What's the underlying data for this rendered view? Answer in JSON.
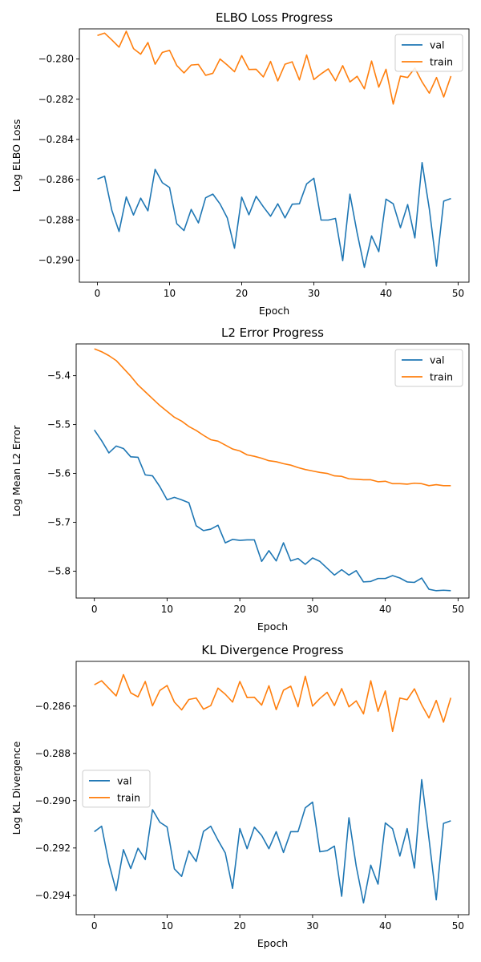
{
  "chart_data": [
    {
      "type": "line",
      "title": "ELBO Loss Progress",
      "xlabel": "Epoch",
      "ylabel": "Log ELBO Loss",
      "xlim": [
        -2.5,
        51.5
      ],
      "ylim": [
        -0.2911,
        -0.2785
      ],
      "xticks": [
        0,
        10,
        20,
        30,
        40,
        50
      ],
      "yticks": [
        -0.29,
        -0.288,
        -0.286,
        -0.284,
        -0.282,
        -0.28
      ],
      "ytick_labels": [
        "−0.290",
        "−0.288",
        "−0.286",
        "−0.284",
        "−0.282",
        "−0.280"
      ],
      "legend_position": "top-right",
      "x": [
        0,
        1,
        2,
        3,
        4,
        5,
        6,
        7,
        8,
        9,
        10,
        11,
        12,
        13,
        14,
        15,
        16,
        17,
        18,
        19,
        20,
        21,
        22,
        23,
        24,
        25,
        26,
        27,
        28,
        29,
        30,
        31,
        32,
        33,
        34,
        35,
        36,
        37,
        38,
        39,
        40,
        41,
        42,
        43,
        44,
        45,
        46,
        47,
        48,
        49
      ],
      "series": [
        {
          "name": "val",
          "color": "#1f77b4",
          "values": [
            -0.28597,
            -0.28583,
            -0.28752,
            -0.28858,
            -0.28686,
            -0.28776,
            -0.28692,
            -0.28755,
            -0.28549,
            -0.28615,
            -0.28639,
            -0.28819,
            -0.28853,
            -0.28748,
            -0.28815,
            -0.2869,
            -0.28672,
            -0.28721,
            -0.2879,
            -0.28941,
            -0.28687,
            -0.28775,
            -0.28683,
            -0.28735,
            -0.28782,
            -0.2872,
            -0.2879,
            -0.28722,
            -0.2872,
            -0.28621,
            -0.28593,
            -0.28801,
            -0.28801,
            -0.28793,
            -0.29003,
            -0.28672,
            -0.28865,
            -0.29036,
            -0.2888,
            -0.28958,
            -0.28697,
            -0.2872,
            -0.28839,
            -0.28724,
            -0.2889,
            -0.28515,
            -0.28745,
            -0.2903,
            -0.28707,
            -0.28694
          ]
        },
        {
          "name": "train",
          "color": "#ff7f0e",
          "values": [
            -0.27883,
            -0.27871,
            -0.27905,
            -0.27941,
            -0.27862,
            -0.27948,
            -0.27976,
            -0.27918,
            -0.28026,
            -0.27967,
            -0.27957,
            -0.28032,
            -0.28069,
            -0.2803,
            -0.28027,
            -0.28081,
            -0.28071,
            -0.28,
            -0.2803,
            -0.28063,
            -0.27983,
            -0.28052,
            -0.28051,
            -0.28089,
            -0.28012,
            -0.28109,
            -0.28026,
            -0.28014,
            -0.28104,
            -0.2798,
            -0.28102,
            -0.28074,
            -0.28049,
            -0.28108,
            -0.28033,
            -0.28114,
            -0.28086,
            -0.28148,
            -0.2801,
            -0.2814,
            -0.28051,
            -0.28224,
            -0.28085,
            -0.28092,
            -0.28045,
            -0.28114,
            -0.2817,
            -0.28092,
            -0.28189,
            -0.28085
          ]
        }
      ]
    },
    {
      "type": "line",
      "title": "L2 Error Progress",
      "xlabel": "Epoch",
      "ylabel": "Log Mean L2 Error",
      "xlim": [
        -2.5,
        51.5
      ],
      "ylim": [
        -5.855,
        -5.335
      ],
      "xticks": [
        0,
        10,
        20,
        30,
        40,
        50
      ],
      "yticks": [
        -5.8,
        -5.7,
        -5.6,
        -5.5,
        -5.4
      ],
      "ytick_labels": [
        "−5.8",
        "−5.7",
        "−5.6",
        "−5.5",
        "−5.4"
      ],
      "legend_position": "top-right",
      "x": [
        0,
        1,
        2,
        3,
        4,
        5,
        6,
        7,
        8,
        9,
        10,
        11,
        12,
        13,
        14,
        15,
        16,
        17,
        18,
        19,
        20,
        21,
        22,
        23,
        24,
        25,
        26,
        27,
        28,
        29,
        30,
        31,
        32,
        33,
        34,
        35,
        36,
        37,
        38,
        39,
        40,
        41,
        42,
        43,
        44,
        45,
        46,
        47,
        48,
        49
      ],
      "series": [
        {
          "name": "val",
          "color": "#1f77b4",
          "values": [
            -5.511,
            -5.533,
            -5.558,
            -5.544,
            -5.549,
            -5.566,
            -5.567,
            -5.603,
            -5.605,
            -5.627,
            -5.654,
            -5.649,
            -5.654,
            -5.66,
            -5.707,
            -5.717,
            -5.714,
            -5.706,
            -5.742,
            -5.735,
            -5.737,
            -5.736,
            -5.736,
            -5.78,
            -5.758,
            -5.779,
            -5.742,
            -5.779,
            -5.774,
            -5.786,
            -5.773,
            -5.78,
            -5.794,
            -5.808,
            -5.797,
            -5.808,
            -5.799,
            -5.822,
            -5.821,
            -5.815,
            -5.815,
            -5.809,
            -5.814,
            -5.822,
            -5.823,
            -5.814,
            -5.837,
            -5.84,
            -5.839,
            -5.84
          ]
        },
        {
          "name": "train",
          "color": "#ff7f0e",
          "values": [
            -5.345,
            -5.351,
            -5.359,
            -5.369,
            -5.385,
            -5.401,
            -5.419,
            -5.433,
            -5.447,
            -5.461,
            -5.473,
            -5.485,
            -5.493,
            -5.504,
            -5.512,
            -5.522,
            -5.531,
            -5.534,
            -5.542,
            -5.55,
            -5.554,
            -5.562,
            -5.565,
            -5.569,
            -5.574,
            -5.576,
            -5.58,
            -5.583,
            -5.588,
            -5.592,
            -5.595,
            -5.598,
            -5.6,
            -5.605,
            -5.606,
            -5.611,
            -5.612,
            -5.613,
            -5.613,
            -5.617,
            -5.616,
            -5.621,
            -5.621,
            -5.622,
            -5.62,
            -5.621,
            -5.625,
            -5.623,
            -5.625,
            -5.625
          ]
        }
      ]
    },
    {
      "type": "line",
      "title": "KL Divergence Progress",
      "xlabel": "Epoch",
      "ylabel": "Log KL Divergence",
      "xlim": [
        -2.5,
        51.5
      ],
      "ylim": [
        -0.29482,
        -0.28411
      ],
      "xticks": [
        0,
        10,
        20,
        30,
        40,
        50
      ],
      "yticks": [
        -0.294,
        -0.292,
        -0.29,
        -0.288,
        -0.286
      ],
      "ytick_labels": [
        "−0.294",
        "−0.292",
        "−0.290",
        "−0.288",
        "−0.286"
      ],
      "legend_position": "center-left",
      "x": [
        0,
        1,
        2,
        3,
        4,
        5,
        6,
        7,
        8,
        9,
        10,
        11,
        12,
        13,
        14,
        15,
        16,
        17,
        18,
        19,
        20,
        21,
        22,
        23,
        24,
        25,
        26,
        27,
        28,
        29,
        30,
        31,
        32,
        33,
        34,
        35,
        36,
        37,
        38,
        39,
        40,
        41,
        42,
        43,
        44,
        45,
        46,
        47,
        48,
        49
      ],
      "series": [
        {
          "name": "val",
          "color": "#1f77b4",
          "values": [
            -0.29131,
            -0.29108,
            -0.29265,
            -0.2938,
            -0.29207,
            -0.29287,
            -0.29201,
            -0.29249,
            -0.29038,
            -0.29091,
            -0.29111,
            -0.29288,
            -0.2932,
            -0.29212,
            -0.29257,
            -0.2913,
            -0.29108,
            -0.29167,
            -0.29221,
            -0.29371,
            -0.29118,
            -0.29203,
            -0.29112,
            -0.29147,
            -0.29203,
            -0.29131,
            -0.29219,
            -0.29131,
            -0.29131,
            -0.2903,
            -0.29006,
            -0.29216,
            -0.29211,
            -0.29192,
            -0.29404,
            -0.29072,
            -0.29277,
            -0.29432,
            -0.29273,
            -0.29353,
            -0.29094,
            -0.29119,
            -0.29234,
            -0.29118,
            -0.29285,
            -0.28911,
            -0.2916,
            -0.29419,
            -0.29096,
            -0.29085
          ]
        },
        {
          "name": "train",
          "color": "#ff7f0e",
          "values": [
            -0.2851,
            -0.28493,
            -0.28525,
            -0.28557,
            -0.28467,
            -0.28544,
            -0.28561,
            -0.28496,
            -0.28599,
            -0.28534,
            -0.28513,
            -0.28583,
            -0.28616,
            -0.28572,
            -0.28566,
            -0.28613,
            -0.28598,
            -0.28524,
            -0.2855,
            -0.28583,
            -0.28496,
            -0.28564,
            -0.28563,
            -0.28596,
            -0.28514,
            -0.28615,
            -0.28533,
            -0.28516,
            -0.28603,
            -0.28474,
            -0.286,
            -0.28568,
            -0.28542,
            -0.28598,
            -0.28526,
            -0.28603,
            -0.28578,
            -0.28633,
            -0.28493,
            -0.28622,
            -0.28536,
            -0.28707,
            -0.28566,
            -0.28573,
            -0.28527,
            -0.28595,
            -0.2865,
            -0.28576,
            -0.28668,
            -0.28565
          ]
        }
      ]
    }
  ]
}
